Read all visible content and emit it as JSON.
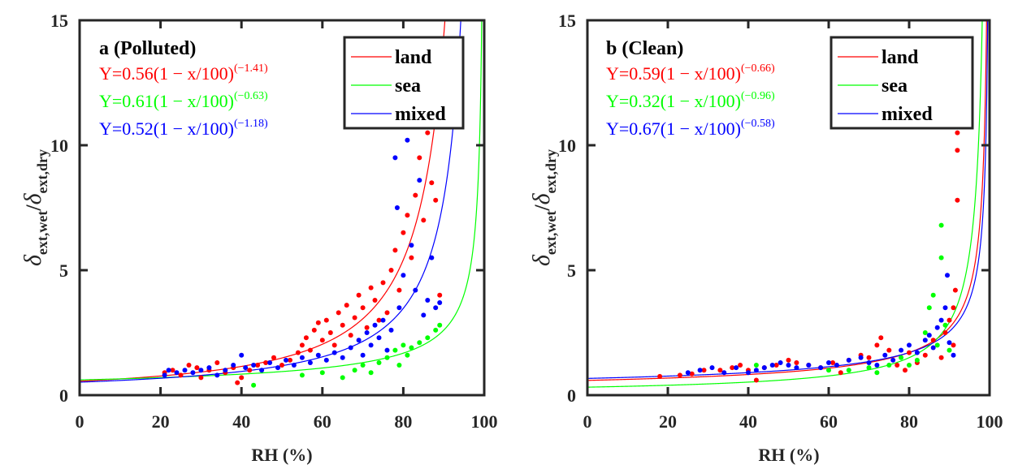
{
  "chart_data": [
    {
      "type": "scatter",
      "panel": "a",
      "title": "a (Polluted)",
      "xlabel": "RH (%)",
      "ylabel": "δ_ext,wet / δ_ext,dry",
      "xlim": [
        0,
        100
      ],
      "ylim": [
        0,
        15
      ],
      "xticks": [
        "0",
        "20",
        "40",
        "60",
        "80",
        "100"
      ],
      "yticks": [
        "0",
        "5",
        "10",
        "15"
      ],
      "legend": {
        "position": "top-right",
        "entries": [
          "land",
          "sea",
          "mixed"
        ]
      },
      "fits": [
        {
          "name": "land",
          "color": "#ff0000",
          "a": 0.56,
          "b": -1.41,
          "equation": "Y=0.56(1 − x/100)",
          "exponent": "(−1.41)"
        },
        {
          "name": "sea",
          "color": "#00ff00",
          "a": 0.61,
          "b": -0.63,
          "equation": "Y=0.61(1 − x/100)",
          "exponent": "(−0.63)"
        },
        {
          "name": "mixed",
          "color": "#0000ff",
          "a": 0.52,
          "b": -1.18,
          "equation": "Y=0.52(1 − x/100)",
          "exponent": "(−1.18)"
        }
      ],
      "series": [
        {
          "name": "land",
          "color": "#ff0000",
          "points": [
            [
              21,
              0.9
            ],
            [
              23,
              1.0
            ],
            [
              25,
              0.8
            ],
            [
              27,
              1.2
            ],
            [
              29,
              1.1
            ],
            [
              30,
              0.7
            ],
            [
              32,
              1.0
            ],
            [
              34,
              1.3
            ],
            [
              36,
              0.9
            ],
            [
              38,
              1.1
            ],
            [
              39,
              0.5
            ],
            [
              40,
              0.7
            ],
            [
              42,
              1.0
            ],
            [
              44,
              1.2
            ],
            [
              46,
              1.3
            ],
            [
              48,
              1.5
            ],
            [
              50,
              1.2
            ],
            [
              52,
              1.4
            ],
            [
              54,
              1.7
            ],
            [
              55,
              2.0
            ],
            [
              56,
              2.3
            ],
            [
              57,
              1.8
            ],
            [
              58,
              2.6
            ],
            [
              59,
              2.9
            ],
            [
              60,
              2.2
            ],
            [
              61,
              3.0
            ],
            [
              62,
              2.5
            ],
            [
              63,
              2.0
            ],
            [
              64,
              3.3
            ],
            [
              65,
              2.8
            ],
            [
              66,
              3.6
            ],
            [
              67,
              2.4
            ],
            [
              68,
              3.1
            ],
            [
              69,
              4.0
            ],
            [
              70,
              3.5
            ],
            [
              71,
              2.7
            ],
            [
              72,
              4.3
            ],
            [
              73,
              3.8
            ],
            [
              74,
              3.0
            ],
            [
              75,
              4.5
            ],
            [
              76,
              3.3
            ],
            [
              77,
              5.0
            ],
            [
              78,
              5.8
            ],
            [
              79,
              4.2
            ],
            [
              80,
              6.5
            ],
            [
              81,
              7.2
            ],
            [
              82,
              5.5
            ],
            [
              83,
              8.0
            ],
            [
              84,
              9.5
            ],
            [
              85,
              7.0
            ],
            [
              86,
              10.5
            ],
            [
              87,
              8.5
            ],
            [
              88,
              7.8
            ],
            [
              89,
              4.0
            ]
          ]
        },
        {
          "name": "sea",
          "color": "#00ff00",
          "points": [
            [
              43,
              0.4
            ],
            [
              55,
              0.8
            ],
            [
              60,
              0.9
            ],
            [
              65,
              0.7
            ],
            [
              68,
              1.0
            ],
            [
              70,
              1.2
            ],
            [
              72,
              0.9
            ],
            [
              74,
              1.3
            ],
            [
              76,
              1.5
            ],
            [
              78,
              1.8
            ],
            [
              79,
              1.2
            ],
            [
              80,
              2.0
            ],
            [
              81,
              1.6
            ],
            [
              82,
              1.9
            ],
            [
              84,
              2.1
            ],
            [
              86,
              2.3
            ],
            [
              88,
              2.6
            ],
            [
              89,
              2.8
            ]
          ]
        },
        {
          "name": "mixed",
          "color": "#0000ff",
          "points": [
            [
              21,
              0.8
            ],
            [
              22,
              1.0
            ],
            [
              24,
              0.9
            ],
            [
              26,
              1.0
            ],
            [
              28,
              0.9
            ],
            [
              30,
              1.0
            ],
            [
              32,
              1.1
            ],
            [
              34,
              0.8
            ],
            [
              36,
              1.0
            ],
            [
              38,
              1.2
            ],
            [
              40,
              1.6
            ],
            [
              41,
              1.1
            ],
            [
              43,
              1.2
            ],
            [
              45,
              1.0
            ],
            [
              47,
              1.3
            ],
            [
              49,
              1.1
            ],
            [
              51,
              1.4
            ],
            [
              53,
              1.2
            ],
            [
              55,
              1.5
            ],
            [
              57,
              1.3
            ],
            [
              59,
              1.6
            ],
            [
              61,
              1.4
            ],
            [
              63,
              1.7
            ],
            [
              65,
              1.5
            ],
            [
              67,
              1.9
            ],
            [
              69,
              2.2
            ],
            [
              70,
              1.6
            ],
            [
              71,
              2.5
            ],
            [
              72,
              2.0
            ],
            [
              73,
              2.8
            ],
            [
              74,
              2.3
            ],
            [
              75,
              3.0
            ],
            [
              76,
              1.8
            ],
            [
              77,
              2.6
            ],
            [
              78,
              9.5
            ],
            [
              78.5,
              7.5
            ],
            [
              79,
              3.5
            ],
            [
              80,
              4.8
            ],
            [
              81,
              10.2
            ],
            [
              82,
              6.0
            ],
            [
              83,
              4.2
            ],
            [
              84,
              8.6
            ],
            [
              85,
              3.2
            ],
            [
              86,
              3.8
            ],
            [
              87,
              5.5
            ],
            [
              88,
              3.5
            ],
            [
              89,
              3.7
            ]
          ]
        }
      ]
    },
    {
      "type": "scatter",
      "panel": "b",
      "title": "b (Clean)",
      "xlabel": "RH (%)",
      "ylabel": "δ_ext,wet / δ_ext,dry",
      "xlim": [
        0,
        100
      ],
      "ylim": [
        0,
        15
      ],
      "xticks": [
        "0",
        "20",
        "40",
        "60",
        "80",
        "100"
      ],
      "yticks": [
        "0",
        "5",
        "10",
        "15"
      ],
      "legend": {
        "position": "top-right",
        "entries": [
          "land",
          "sea",
          "mixed"
        ]
      },
      "fits": [
        {
          "name": "land",
          "color": "#ff0000",
          "a": 0.59,
          "b": -0.66,
          "equation": "Y=0.59(1 − x/100)",
          "exponent": "(−0.66)"
        },
        {
          "name": "sea",
          "color": "#00ff00",
          "a": 0.32,
          "b": -0.96,
          "equation": "Y=0.32(1 − x/100)",
          "exponent": "(−0.96)"
        },
        {
          "name": "mixed",
          "color": "#0000ff",
          "a": 0.67,
          "b": -0.58,
          "equation": "Y=0.67(1 − x/100)",
          "exponent": "(−0.58)"
        }
      ],
      "series": [
        {
          "name": "land",
          "color": "#ff0000",
          "points": [
            [
              18,
              0.75
            ],
            [
              23,
              0.8
            ],
            [
              26,
              0.85
            ],
            [
              29,
              1.0
            ],
            [
              33,
              1.0
            ],
            [
              36,
              1.1
            ],
            [
              38,
              1.2
            ],
            [
              40,
              1.0
            ],
            [
              42,
              0.6
            ],
            [
              44,
              1.1
            ],
            [
              47,
              1.2
            ],
            [
              50,
              1.4
            ],
            [
              52,
              1.3
            ],
            [
              55,
              1.2
            ],
            [
              58,
              1.1
            ],
            [
              61,
              1.3
            ],
            [
              63,
              0.9
            ],
            [
              65,
              1.4
            ],
            [
              68,
              1.6
            ],
            [
              70,
              1.5
            ],
            [
              72,
              2.0
            ],
            [
              73,
              2.3
            ],
            [
              75,
              1.8
            ],
            [
              77,
              1.2
            ],
            [
              79,
              1.0
            ],
            [
              80,
              1.7
            ],
            [
              82,
              1.3
            ],
            [
              84,
              1.6
            ],
            [
              86,
              2.2
            ],
            [
              88,
              1.5
            ],
            [
              89,
              2.5
            ],
            [
              90,
              3.0
            ],
            [
              91,
              3.5
            ],
            [
              91.5,
              4.2
            ],
            [
              92,
              7.8
            ],
            [
              92,
              9.8
            ],
            [
              92,
              10.5
            ],
            [
              91,
              2.0
            ]
          ]
        },
        {
          "name": "sea",
          "color": "#00ff00",
          "points": [
            [
              42,
              1.2
            ],
            [
              60,
              1.0
            ],
            [
              65,
              1.0
            ],
            [
              70,
              1.1
            ],
            [
              72,
              0.9
            ],
            [
              75,
              1.2
            ],
            [
              78,
              1.5
            ],
            [
              80,
              1.2
            ],
            [
              82,
              1.4
            ],
            [
              84,
              2.5
            ],
            [
              85,
              3.5
            ],
            [
              86,
              4.0
            ],
            [
              87,
              2.0
            ],
            [
              88,
              6.8
            ],
            [
              88,
              5.5
            ],
            [
              89,
              2.8
            ],
            [
              90,
              1.8
            ]
          ]
        },
        {
          "name": "mixed",
          "color": "#0000ff",
          "points": [
            [
              25,
              0.9
            ],
            [
              28,
              1.0
            ],
            [
              31,
              1.1
            ],
            [
              34,
              0.9
            ],
            [
              37,
              1.1
            ],
            [
              40,
              0.9
            ],
            [
              42,
              1.0
            ],
            [
              44,
              1.1
            ],
            [
              46,
              1.2
            ],
            [
              48,
              1.3
            ],
            [
              50,
              1.2
            ],
            [
              52,
              1.1
            ],
            [
              55,
              1.2
            ],
            [
              58,
              1.1
            ],
            [
              60,
              1.3
            ],
            [
              62,
              1.2
            ],
            [
              65,
              1.4
            ],
            [
              68,
              1.5
            ],
            [
              70,
              1.3
            ],
            [
              72,
              1.2
            ],
            [
              74,
              1.6
            ],
            [
              76,
              1.4
            ],
            [
              78,
              1.8
            ],
            [
              80,
              2.0
            ],
            [
              82,
              1.7
            ],
            [
              84,
              2.2
            ],
            [
              85,
              2.4
            ],
            [
              86,
              1.9
            ],
            [
              87,
              2.7
            ],
            [
              88,
              3.0
            ],
            [
              89,
              3.5
            ],
            [
              89.5,
              4.8
            ],
            [
              90,
              2.1
            ],
            [
              91,
              1.6
            ]
          ]
        }
      ]
    }
  ]
}
